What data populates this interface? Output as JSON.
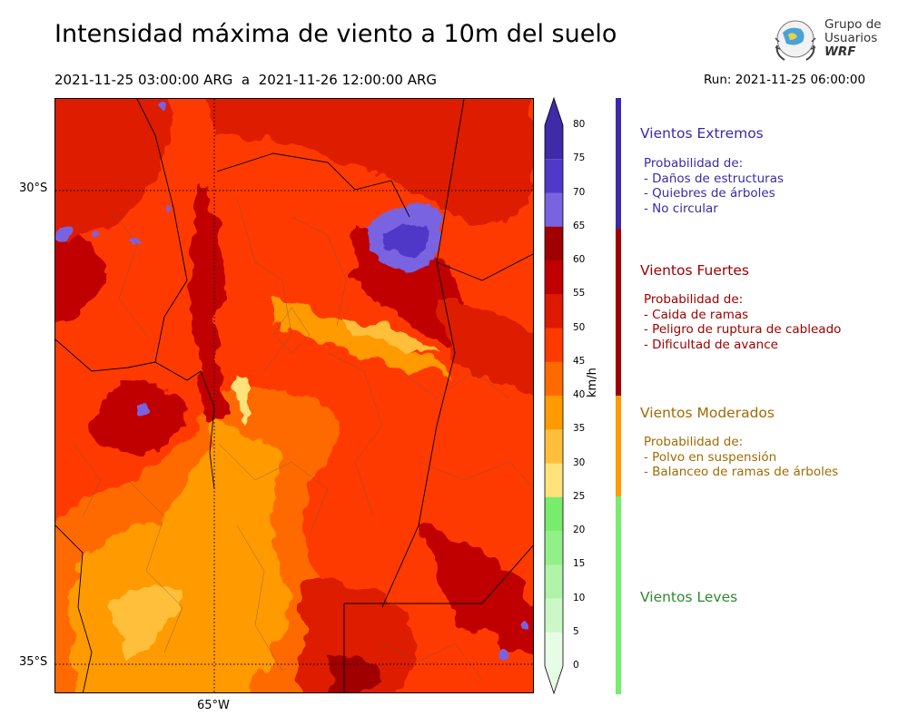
{
  "title": "Intensidad máxima de viento a 10m del suelo",
  "period": "2021-11-25 03:00:00 ARG  a  2021-11-26 12:00:00 ARG",
  "run": "Run: 2021-11-25 06:00:00",
  "logo": {
    "line1": "Grupo de",
    "line2": "Usuarios",
    "line3": "WRF"
  },
  "map": {
    "lat_labels": [
      "30°S",
      "35°S"
    ],
    "lon_labels": [
      "65°W"
    ]
  },
  "colorbar": {
    "unit": "km/h",
    "ticks": [
      "80",
      "75",
      "70",
      "65",
      "60",
      "55",
      "50",
      "45",
      "40",
      "35",
      "30",
      "25",
      "20",
      "15",
      "10",
      "5",
      "0"
    ],
    "levels": [
      {
        "from": 75,
        "to": 80,
        "color": "#3f2aa8"
      },
      {
        "from": 70,
        "to": 75,
        "color": "#5038c8"
      },
      {
        "from": 65,
        "to": 70,
        "color": "#7a63e0"
      },
      {
        "from": 60,
        "to": 65,
        "color": "#a00000"
      },
      {
        "from": 55,
        "to": 60,
        "color": "#c00000"
      },
      {
        "from": 50,
        "to": 55,
        "color": "#dd1a00"
      },
      {
        "from": 45,
        "to": 50,
        "color": "#ff3a00"
      },
      {
        "from": 40,
        "to": 45,
        "color": "#ff6a00"
      },
      {
        "from": 35,
        "to": 40,
        "color": "#ff9a00"
      },
      {
        "from": 30,
        "to": 35,
        "color": "#ffbf3a"
      },
      {
        "from": 25,
        "to": 30,
        "color": "#ffe27a"
      },
      {
        "from": 20,
        "to": 25,
        "color": "#78ec6c"
      },
      {
        "from": 15,
        "to": 20,
        "color": "#92f088"
      },
      {
        "from": 10,
        "to": 15,
        "color": "#b0f4a8"
      },
      {
        "from": 5,
        "to": 10,
        "color": "#ccf8c8"
      },
      {
        "from": 0,
        "to": 5,
        "color": "#e6fce4"
      }
    ]
  },
  "categories": [
    {
      "name": "Vientos Extremos",
      "color": "#3a2aa8",
      "bar_color": "#3a2aa8",
      "desc_title": "Probabilidad de:",
      "desc": [
        "- Daños de estructuras",
        "- Quiebres de árboles",
        "- No circular"
      ]
    },
    {
      "name": "Vientos Fuertes",
      "color": "#a00000",
      "bar_color": "#a00000",
      "desc_title": "Probabilidad de:",
      "desc": [
        "- Caida de ramas",
        "- Peligro de ruptura de cableado",
        "- Dificultad de avance"
      ]
    },
    {
      "name": "Vientos Moderados",
      "color": "#a36a00",
      "bar_color": "#ff9a00",
      "desc_title": "Probabilidad de:",
      "desc": [
        "- Polvo en suspensión",
        "- Balanceo de ramas de árboles"
      ]
    },
    {
      "name": "Vientos Leves",
      "color": "#2e8b2e",
      "bar_color": "#78ec6c",
      "desc_title": "",
      "desc": []
    }
  ]
}
